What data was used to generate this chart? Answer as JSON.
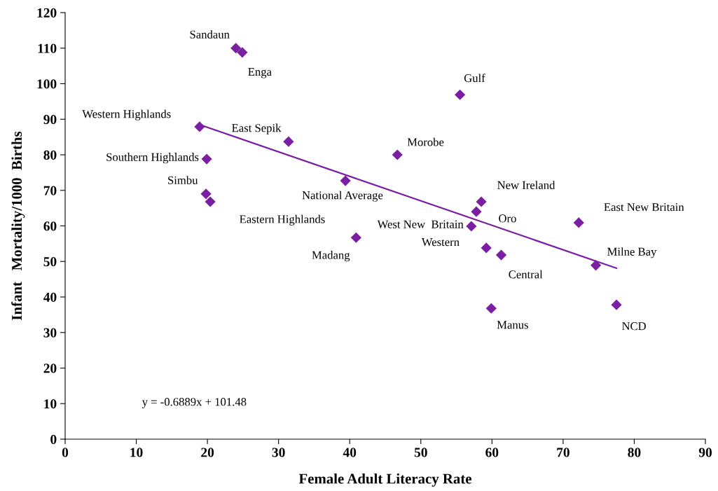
{
  "chart_data": {
    "type": "scatter",
    "xlabel": "Female Adult Literacy Rate",
    "ylabel": "Infant   Mortality/1000  Births",
    "xlim": [
      0,
      90
    ],
    "xticks": [
      0,
      10,
      20,
      30,
      40,
      50,
      60,
      70,
      80,
      90
    ],
    "ylim": [
      0,
      120
    ],
    "yticks": [
      0,
      10,
      20,
      30,
      40,
      50,
      60,
      70,
      80,
      90,
      100,
      110,
      120
    ],
    "grid": false,
    "series": [
      {
        "marker": "diamond",
        "color": "#7b1fa2",
        "x": [
          24.0,
          24.9,
          55.5,
          18.9,
          31.4,
          46.7,
          19.9,
          39.4,
          19.8,
          20.4,
          58.5,
          57.8,
          57.1,
          72.2,
          40.9,
          59.2,
          61.3,
          74.6,
          77.5,
          59.9
        ],
        "values": [
          110.0,
          108.8,
          96.9,
          87.9,
          83.7,
          80.0,
          78.8,
          72.7,
          69.0,
          66.8,
          66.8,
          64.0,
          59.9,
          60.9,
          56.7,
          53.8,
          51.8,
          48.9,
          37.8,
          36.8
        ]
      },
      {
        "type": "line",
        "color": "#7b1fa2",
        "line_style": "solid",
        "x": [
          19.0,
          77.5
        ],
        "values": [
          88.4,
          48.1
        ]
      }
    ],
    "annotations": [
      {
        "text": "Sandaun",
        "x": 24.0,
        "y": 110.0
      },
      {
        "text": "Enga",
        "x": 24.9,
        "y": 108.8
      },
      {
        "text": "Gulf",
        "x": 55.5,
        "y": 96.9
      },
      {
        "text": "Western Highlands",
        "x": 18.9,
        "y": 87.9
      },
      {
        "text": "East Sepik",
        "x": 31.4,
        "y": 83.7
      },
      {
        "text": "Morobe",
        "x": 46.7,
        "y": 80.0
      },
      {
        "text": "Southern Highlands",
        "x": 19.9,
        "y": 78.8
      },
      {
        "text": "National Average",
        "x": 39.4,
        "y": 72.7
      },
      {
        "text": "Simbu",
        "x": 19.8,
        "y": 69.0
      },
      {
        "text": "Eastern Highlands",
        "x": 20.4,
        "y": 66.8
      },
      {
        "text": "New Ireland",
        "x": 58.5,
        "y": 66.8
      },
      {
        "text": "Oro",
        "x": 57.8,
        "y": 64.0
      },
      {
        "text": "West New  Britain",
        "x": 57.1,
        "y": 59.9
      },
      {
        "text": "East New Britain",
        "x": 72.2,
        "y": 60.9
      },
      {
        "text": "Madang",
        "x": 40.9,
        "y": 56.7
      },
      {
        "text": "Western",
        "x": 59.2,
        "y": 53.8
      },
      {
        "text": "Central",
        "x": 61.3,
        "y": 51.8
      },
      {
        "text": "Milne Bay",
        "x": 74.6,
        "y": 48.9
      },
      {
        "text": "NCD",
        "x": 77.5,
        "y": 37.8
      },
      {
        "text": "Manus",
        "x": 59.9,
        "y": 36.8
      },
      "y = -0.6889x + 101.48"
    ]
  }
}
